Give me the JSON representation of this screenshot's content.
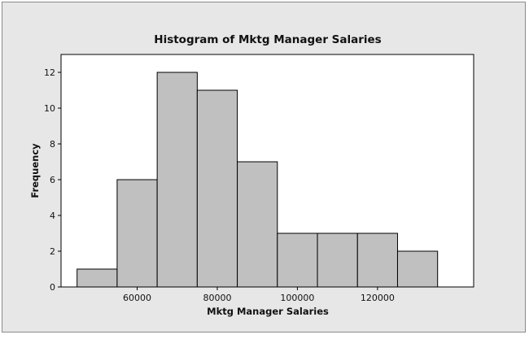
{
  "chart_data": {
    "type": "bar",
    "title": "Histogram of Mktg Manager Salaries",
    "xlabel": "Mktg Manager Salaries",
    "ylabel": "Frequency",
    "bins": [
      {
        "start": 45000,
        "end": 55000,
        "count": 1
      },
      {
        "start": 55000,
        "end": 65000,
        "count": 6
      },
      {
        "start": 65000,
        "end": 75000,
        "count": 12
      },
      {
        "start": 75000,
        "end": 85000,
        "count": 11
      },
      {
        "start": 85000,
        "end": 95000,
        "count": 7
      },
      {
        "start": 95000,
        "end": 105000,
        "count": 3
      },
      {
        "start": 105000,
        "end": 115000,
        "count": 3
      },
      {
        "start": 115000,
        "end": 125000,
        "count": 3
      },
      {
        "start": 125000,
        "end": 135000,
        "count": 2
      }
    ],
    "xticks": [
      60000,
      80000,
      100000,
      120000
    ],
    "yticks": [
      0,
      2,
      4,
      6,
      8,
      10,
      12
    ],
    "xlim": [
      41000,
      144000
    ],
    "ylim": [
      0,
      13
    ],
    "grid": false,
    "colors": {
      "bar_fill": "#c0c0c0",
      "bar_stroke": "#000000",
      "plot_bg": "#ffffff",
      "frame_bg": "#e7e7e7"
    }
  }
}
